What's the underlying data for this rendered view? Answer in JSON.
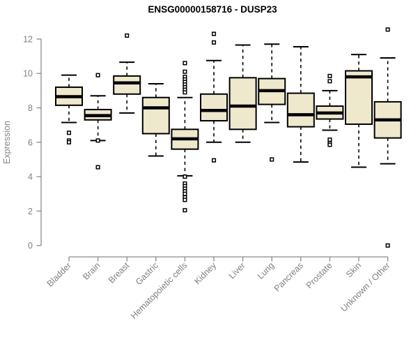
{
  "page": {
    "background": "#ffffff"
  },
  "chart_data": {
    "type": "boxplot",
    "title": "ENSG00000158716 - DUSP23",
    "ylabel": "Expression",
    "xlabel": "",
    "ylim": [
      0,
      12.6
    ],
    "yticks": [
      0,
      2,
      4,
      6,
      8,
      10,
      12
    ],
    "grid": false,
    "legend": "none",
    "tick_label_rotation_deg": 45,
    "colors": {
      "box_fill": "#EEE8CD",
      "box_border": "#000000",
      "median": "#000000",
      "whisker": "#000000",
      "outlier_fill": "#ffffff",
      "axis": "#8a8a8a",
      "tick_label": "#808080",
      "title": "#000000"
    },
    "categories": [
      "Bladder",
      "Brain",
      "Breast",
      "Gastric",
      "Hematopoietic cells",
      "Kidney",
      "Liver",
      "Lung",
      "Pancreas",
      "Prostate",
      "Skin",
      "Unknown / Other"
    ],
    "boxes": [
      {
        "label": "Bladder",
        "whisker_low": 7.15,
        "q1": 8.15,
        "median": 8.65,
        "q3": 9.2,
        "whisker_high": 9.9,
        "outliers": [
          6.55,
          6.1,
          6.0
        ]
      },
      {
        "label": "Brain",
        "whisker_low": 6.1,
        "q1": 7.3,
        "median": 7.55,
        "q3": 7.9,
        "whisker_high": 8.7,
        "outliers": [
          9.9,
          6.1,
          4.55
        ]
      },
      {
        "label": "Breast",
        "whisker_low": 7.7,
        "q1": 8.8,
        "median": 9.45,
        "q3": 9.85,
        "whisker_high": 10.65,
        "outliers": [
          12.2
        ]
      },
      {
        "label": "Gastric",
        "whisker_low": 5.2,
        "q1": 6.5,
        "median": 8.0,
        "q3": 8.6,
        "whisker_high": 9.4,
        "outliers": []
      },
      {
        "label": "Hematopoietic cells",
        "whisker_low": 4.05,
        "q1": 5.6,
        "median": 6.2,
        "q3": 6.75,
        "whisker_high": 8.6,
        "outliers": [
          10.6,
          10.1,
          9.8,
          9.65,
          9.5,
          9.35,
          9.2,
          9.05,
          8.9,
          4.0,
          3.6,
          3.45,
          3.3,
          3.15,
          3.0,
          2.8,
          2.65,
          2.05
        ]
      },
      {
        "label": "Kidney",
        "whisker_low": 6.0,
        "q1": 7.25,
        "median": 7.85,
        "q3": 8.8,
        "whisker_high": 10.75,
        "outliers": [
          12.3,
          11.8,
          4.95
        ]
      },
      {
        "label": "Liver",
        "whisker_low": 6.0,
        "q1": 6.75,
        "median": 8.1,
        "q3": 9.75,
        "whisker_high": 11.65,
        "outliers": []
      },
      {
        "label": "Lung",
        "whisker_low": 7.15,
        "q1": 8.2,
        "median": 9.0,
        "q3": 9.7,
        "whisker_high": 11.7,
        "outliers": [
          5.0
        ]
      },
      {
        "label": "Pancreas",
        "whisker_low": 4.85,
        "q1": 6.9,
        "median": 7.6,
        "q3": 8.85,
        "whisker_high": 11.55,
        "outliers": []
      },
      {
        "label": "Prostate",
        "whisker_low": 6.7,
        "q1": 7.35,
        "median": 7.7,
        "q3": 8.1,
        "whisker_high": 9.0,
        "outliers": [
          9.85,
          9.55,
          6.15,
          5.95,
          5.85
        ]
      },
      {
        "label": "Skin",
        "whisker_low": 4.55,
        "q1": 7.05,
        "median": 9.8,
        "q3": 10.15,
        "whisker_high": 11.1,
        "outliers": []
      },
      {
        "label": "Unknown / Other",
        "whisker_low": 4.75,
        "q1": 6.25,
        "median": 7.3,
        "q3": 8.35,
        "whisker_high": 10.9,
        "outliers": [
          12.55,
          0.0
        ]
      }
    ]
  }
}
